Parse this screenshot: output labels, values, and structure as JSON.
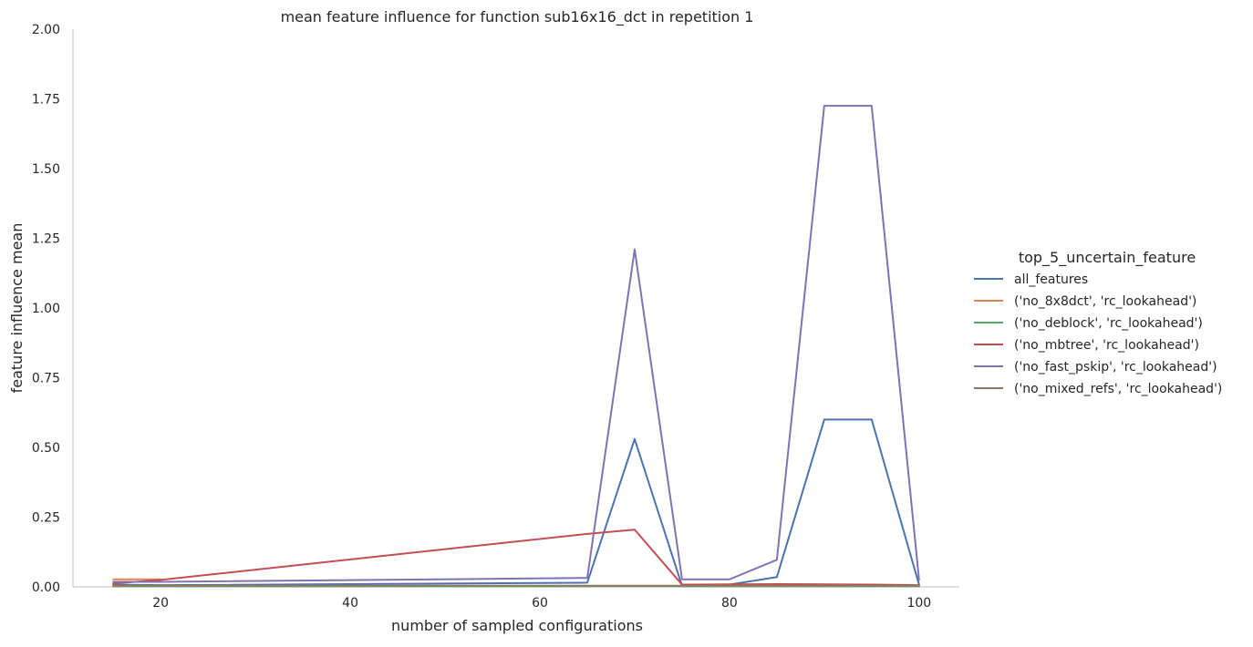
{
  "chart_data": {
    "type": "line",
    "title": "mean feature influence for function sub16x16_dct in repetition 1",
    "xlabel": "number of sampled configurations",
    "ylabel": "feature influence mean",
    "xlim": [
      10.75,
      104.25
    ],
    "ylim": [
      0,
      2.0
    ],
    "xticks": [
      20,
      40,
      60,
      80,
      100
    ],
    "xtick_labels": [
      "20",
      "40",
      "60",
      "80",
      "100"
    ],
    "yticks": [
      0,
      0.25,
      0.5,
      0.75,
      1.0,
      1.25,
      1.5,
      1.75,
      2.0
    ],
    "ytick_labels": [
      "0.00",
      "0.25",
      "0.50",
      "0.75",
      "1.00",
      "1.25",
      "1.50",
      "1.75",
      "2.00"
    ],
    "grid": false,
    "legend_title": "top_5_uncertain_feature",
    "legend_position": "right",
    "x": [
      15,
      20,
      65,
      70,
      75,
      80,
      85,
      90,
      95,
      100
    ],
    "series": [
      {
        "name": "all_features",
        "color": "#4c72b0",
        "values": [
          0.008,
          0.006,
          0.015,
          0.53,
          0.003,
          0.008,
          0.035,
          0.6,
          0.6,
          0.008
        ]
      },
      {
        "name": "('no_8x8dct', 'rc_lookahead')",
        "color": "#dd8452",
        "x": [
          15,
          20
        ],
        "values": [
          0.027,
          0.027
        ]
      },
      {
        "name": "('no_deblock', 'rc_lookahead')",
        "color": "#55a868",
        "values": [
          0.002,
          0.002,
          0.002,
          0.002,
          0.002,
          0.002,
          0.002,
          0.002,
          0.002,
          0.002
        ]
      },
      {
        "name": "('no_mbtree', 'rc_lookahead')",
        "color": "#c44e52",
        "values": [
          0.012,
          0.025,
          0.19,
          0.205,
          0.008,
          0.009,
          0.01,
          0.009,
          0.008,
          0.006
        ]
      },
      {
        "name": "('no_fast_pskip', 'rc_lookahead')",
        "color": "#8172b3",
        "values": [
          0.018,
          0.018,
          0.032,
          1.21,
          0.027,
          0.027,
          0.097,
          1.725,
          1.725,
          0.025
        ]
      },
      {
        "name": "('no_mixed_refs', 'rc_lookahead')",
        "color": "#937860",
        "values": [
          0.004,
          0.004,
          0.004,
          0.004,
          0.004,
          0.004,
          0.004,
          0.004,
          0.004,
          0.004
        ]
      }
    ]
  }
}
